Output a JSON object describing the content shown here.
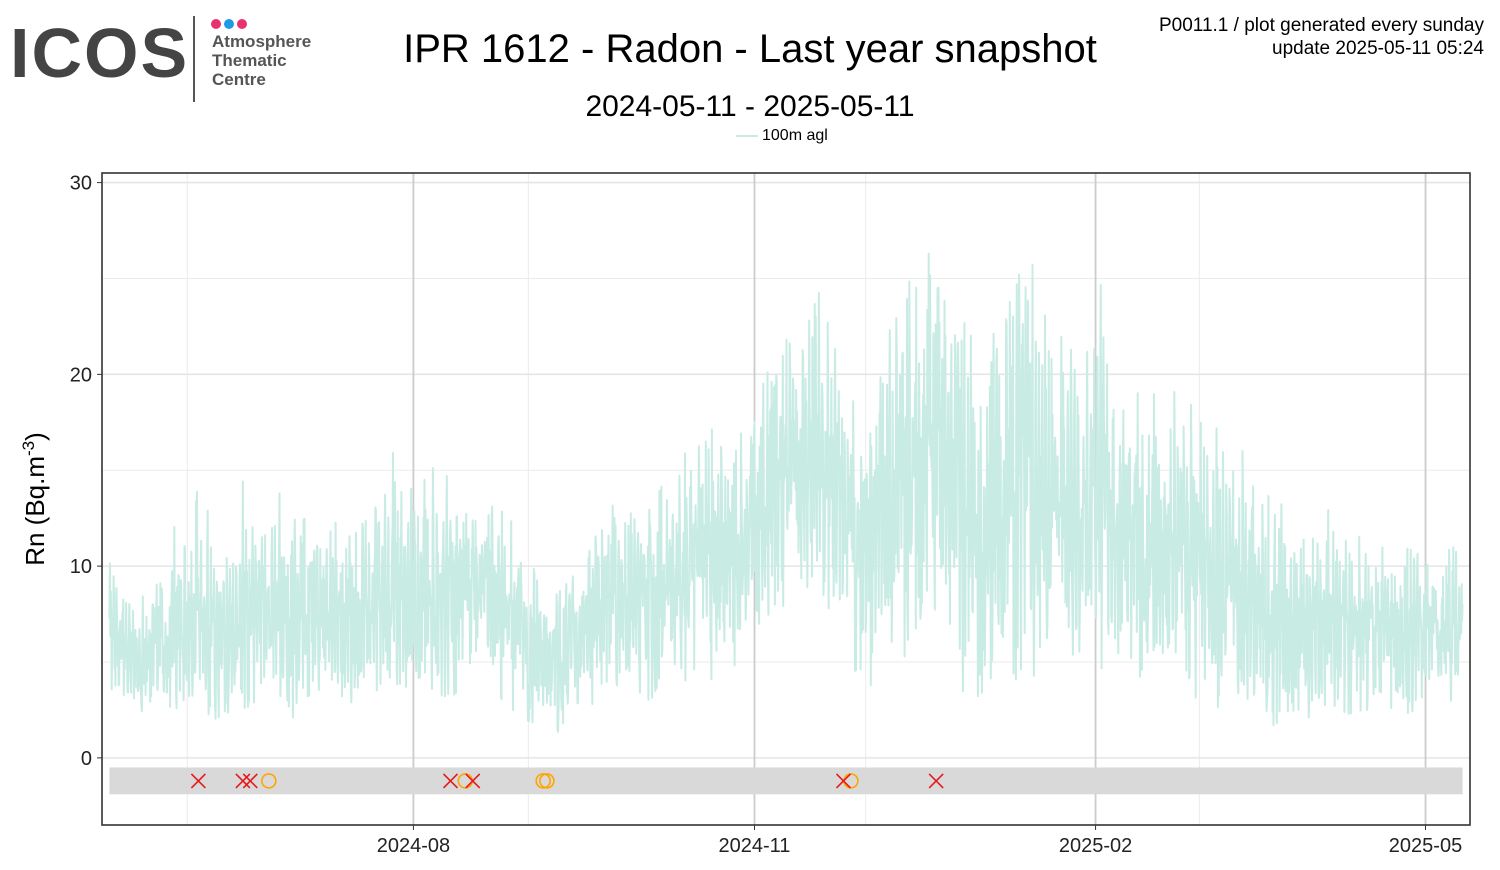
{
  "logo": {
    "name": "ICOS",
    "lines": [
      "Atmosphere",
      "Thematic",
      "Centre"
    ],
    "dot_colors": [
      "#e6336f",
      "#1e9be6",
      "#e6336f"
    ]
  },
  "header": {
    "title": "IPR 1612 - Radon - Last year snapshot",
    "subtitle": "2024-05-11 - 2025-05-11",
    "meta_line1": "P0011.1 / plot generated every sunday",
    "meta_line2": "update  2025-05-11 05:24"
  },
  "chart_data": {
    "type": "line",
    "title": "IPR 1612 - Radon - Last year snapshot",
    "subtitle": "2024-05-11 - 2025-05-11",
    "ylabel": "Rn (Bq.m-3)",
    "xlabel": "",
    "x_range": [
      "2024-05-11",
      "2025-05-11"
    ],
    "ylim": [
      -3.5,
      30.5
    ],
    "y_ticks": [
      0,
      10,
      20,
      30
    ],
    "x_ticks": [
      "2024-08",
      "2024-11",
      "2025-02",
      "2025-05"
    ],
    "grid": true,
    "legend_position": "top-center",
    "line_color": "#c8ebe4",
    "series": [
      {
        "name": "100m agl",
        "x": [
          "2024-05-11",
          "2024-05-18",
          "2024-05-25",
          "2024-06-01",
          "2024-06-08",
          "2024-06-15",
          "2024-06-22",
          "2024-06-29",
          "2024-07-06",
          "2024-07-13",
          "2024-07-20",
          "2024-07-27",
          "2024-08-03",
          "2024-08-10",
          "2024-08-17",
          "2024-08-24",
          "2024-08-31",
          "2024-09-07",
          "2024-09-14",
          "2024-09-21",
          "2024-09-28",
          "2024-10-05",
          "2024-10-12",
          "2024-10-19",
          "2024-10-26",
          "2024-11-02",
          "2024-11-09",
          "2024-11-16",
          "2024-11-23",
          "2024-11-30",
          "2024-12-07",
          "2024-12-14",
          "2024-12-21",
          "2024-12-28",
          "2025-01-04",
          "2025-01-11",
          "2025-01-18",
          "2025-01-25",
          "2025-02-01",
          "2025-02-08",
          "2025-02-15",
          "2025-02-22",
          "2025-03-01",
          "2025-03-08",
          "2025-03-15",
          "2025-03-22",
          "2025-03-29",
          "2025-04-05",
          "2025-04-12",
          "2025-04-19",
          "2025-04-26",
          "2025-05-03",
          "2025-05-11"
        ],
        "y": [
          6.5,
          5,
          6,
          7,
          6.5,
          7,
          8,
          7.5,
          8,
          7,
          8,
          9,
          8,
          8.5,
          9,
          8.5,
          6,
          5.5,
          6,
          8,
          8.5,
          8,
          10,
          11,
          11.5,
          13,
          15,
          16,
          15,
          12,
          14,
          16,
          18,
          12,
          13,
          15,
          14,
          13,
          14,
          12,
          11,
          12,
          10,
          9,
          8,
          7.5,
          7,
          7.5,
          7,
          7,
          6.5,
          7,
          7
        ],
        "min": [
          2,
          2.5,
          2,
          3,
          2,
          2.5,
          3,
          2,
          3,
          2.5,
          3,
          3.5,
          4,
          3,
          4,
          3,
          2,
          1.5,
          1,
          3,
          2.5,
          3,
          3,
          4,
          4,
          5,
          8,
          9,
          7,
          3,
          5,
          5,
          8,
          1,
          4,
          3,
          4,
          3,
          4,
          4,
          3.5,
          4,
          3,
          2.5,
          2,
          1.5,
          2,
          2.5,
          2,
          2.5,
          2,
          2.5,
          3
        ],
        "max": [
          11,
          9,
          10,
          14.5,
          13.5,
          15,
          13,
          15,
          13,
          13,
          14,
          17,
          16.5,
          15,
          13,
          14.5,
          13,
          8,
          10.5,
          13.5,
          13.5,
          14,
          16,
          18,
          16.5,
          24,
          23,
          26,
          22,
          18,
          24,
          27,
          29,
          25,
          26,
          27,
          25,
          22,
          26,
          21,
          18,
          23,
          24,
          19,
          16,
          15,
          14,
          13,
          13,
          12,
          12,
          11,
          15
        ]
      }
    ],
    "flags": {
      "description_rejected_marker": "x",
      "rejected_color": "#e41a1c",
      "suspicious_color": "#ffa500",
      "rejected_dates": [
        "2024-06-04",
        "2024-06-16",
        "2024-06-18",
        "2024-08-11",
        "2024-08-17",
        "2024-11-25",
        "2024-12-20"
      ],
      "suspicious_dates": [
        "2024-06-23",
        "2024-08-15",
        "2024-09-05",
        "2024-09-06",
        "2024-11-27"
      ]
    }
  }
}
